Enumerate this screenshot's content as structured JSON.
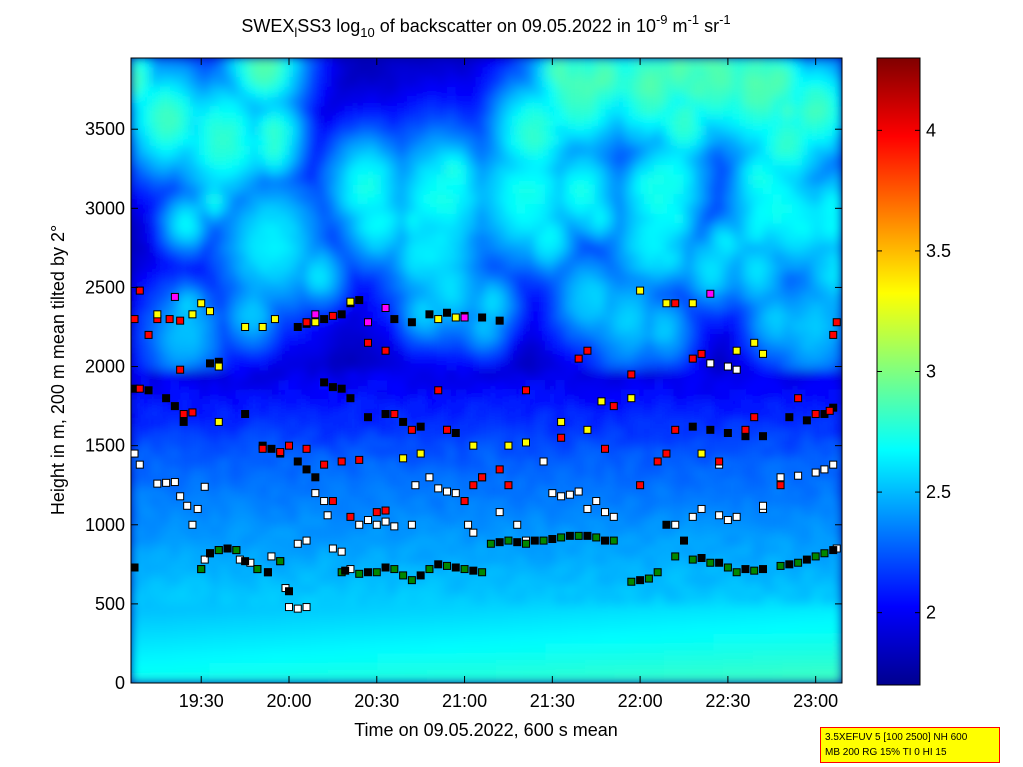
{
  "chart_data": {
    "type": "heatmap",
    "title": {
      "prefix": "SWEX",
      "sub1": "l",
      "mid1": "SS3 log",
      "sub2": "10",
      "mid2": " of backscatter on 09.05.2022 in 10",
      "sup1": "-9",
      "mid3": " m",
      "sup2": "-1",
      "mid4": " sr",
      "sup3": "-1"
    },
    "xlabel": "Time on 09.05.2022, 600 s mean",
    "ylabel": "Height in m, 200 m mean tilted by 2°",
    "x_range_hours": [
      19.1,
      23.15
    ],
    "y_range_m": [
      0,
      3950
    ],
    "x_ticks": [
      {
        "value": 19.5,
        "label": "19:30"
      },
      {
        "value": 20.0,
        "label": "20:00"
      },
      {
        "value": 20.5,
        "label": "20:30"
      },
      {
        "value": 21.0,
        "label": "21:00"
      },
      {
        "value": 21.5,
        "label": "21:30"
      },
      {
        "value": 22.0,
        "label": "22:00"
      },
      {
        "value": 22.5,
        "label": "22:30"
      },
      {
        "value": 23.0,
        "label": "23:00"
      }
    ],
    "y_ticks": [
      {
        "value": 0,
        "label": "0"
      },
      {
        "value": 500,
        "label": "500"
      },
      {
        "value": 1000,
        "label": "1000"
      },
      {
        "value": 1500,
        "label": "1500"
      },
      {
        "value": 2000,
        "label": "2000"
      },
      {
        "value": 2500,
        "label": "2500"
      },
      {
        "value": 3000,
        "label": "3000"
      },
      {
        "value": 3500,
        "label": "3500"
      }
    ],
    "colorbar": {
      "range": [
        1.7,
        4.3
      ],
      "ticks": [
        {
          "value": 2,
          "label": "2"
        },
        {
          "value": 2.5,
          "label": "2.5"
        },
        {
          "value": 3,
          "label": "3"
        },
        {
          "value": 3.5,
          "label": "3.5"
        },
        {
          "value": 4,
          "label": "4"
        }
      ],
      "colormap": "jet"
    },
    "marker_layers": [
      {
        "color": "#ffffff",
        "points": [
          [
            19.12,
            1450
          ],
          [
            19.15,
            1380
          ],
          [
            19.25,
            1260
          ],
          [
            19.3,
            1265
          ],
          [
            19.35,
            1270
          ],
          [
            19.38,
            1180
          ],
          [
            19.42,
            1120
          ],
          [
            19.45,
            1000
          ],
          [
            19.48,
            1100
          ],
          [
            19.52,
            1240
          ],
          [
            19.5,
            720
          ],
          [
            19.52,
            780
          ],
          [
            19.55,
            820
          ],
          [
            19.6,
            840
          ],
          [
            19.65,
            850
          ],
          [
            19.7,
            840
          ],
          [
            19.72,
            780
          ],
          [
            19.78,
            760
          ],
          [
            19.82,
            720
          ],
          [
            19.88,
            700
          ],
          [
            19.9,
            800
          ],
          [
            19.95,
            770
          ],
          [
            19.98,
            600
          ],
          [
            20.0,
            480
          ],
          [
            20.05,
            470
          ],
          [
            20.1,
            480
          ],
          [
            20.05,
            880
          ],
          [
            20.1,
            900
          ],
          [
            20.15,
            1200
          ],
          [
            20.2,
            1150
          ],
          [
            20.22,
            1060
          ],
          [
            20.25,
            850
          ],
          [
            20.3,
            830
          ],
          [
            20.35,
            720
          ],
          [
            20.4,
            1000
          ],
          [
            20.45,
            1030
          ],
          [
            20.5,
            1000
          ],
          [
            20.55,
            1020
          ],
          [
            20.6,
            990
          ],
          [
            20.7,
            1000
          ],
          [
            20.72,
            1250
          ],
          [
            20.8,
            1300
          ],
          [
            20.85,
            1230
          ],
          [
            20.9,
            1210
          ],
          [
            20.95,
            1200
          ],
          [
            21.0,
            1150
          ],
          [
            21.02,
            1000
          ],
          [
            21.05,
            950
          ],
          [
            21.1,
            1300
          ],
          [
            21.2,
            1080
          ],
          [
            21.3,
            1000
          ],
          [
            21.35,
            900
          ],
          [
            21.45,
            1400
          ],
          [
            21.5,
            1200
          ],
          [
            21.55,
            1180
          ],
          [
            21.6,
            1190
          ],
          [
            21.65,
            1210
          ],
          [
            21.7,
            1100
          ],
          [
            21.75,
            1150
          ],
          [
            21.8,
            1080
          ],
          [
            21.85,
            1050
          ],
          [
            22.2,
            1000
          ],
          [
            22.3,
            1050
          ],
          [
            22.35,
            1100
          ],
          [
            22.45,
            1060
          ],
          [
            22.5,
            1030
          ],
          [
            22.55,
            1050
          ],
          [
            22.7,
            1100
          ],
          [
            22.8,
            1300
          ],
          [
            22.9,
            1310
          ],
          [
            23.0,
            1330
          ],
          [
            23.05,
            1350
          ],
          [
            23.1,
            1380
          ],
          [
            22.4,
            2020
          ],
          [
            22.5,
            2000
          ],
          [
            22.55,
            1980
          ],
          [
            22.45,
            1380
          ],
          [
            22.7,
            1120
          ],
          [
            23.12,
            850
          ]
        ]
      },
      {
        "color": "#008800",
        "points": [
          [
            19.5,
            720
          ],
          [
            19.6,
            840
          ],
          [
            19.7,
            840
          ],
          [
            19.82,
            720
          ],
          [
            19.95,
            770
          ],
          [
            20.3,
            700
          ],
          [
            20.4,
            690
          ],
          [
            20.5,
            700
          ],
          [
            20.6,
            720
          ],
          [
            20.65,
            680
          ],
          [
            20.7,
            650
          ],
          [
            20.8,
            720
          ],
          [
            20.9,
            740
          ],
          [
            21.0,
            720
          ],
          [
            21.1,
            700
          ],
          [
            21.15,
            880
          ],
          [
            21.25,
            900
          ],
          [
            21.35,
            880
          ],
          [
            21.45,
            900
          ],
          [
            21.55,
            920
          ],
          [
            21.65,
            930
          ],
          [
            21.75,
            920
          ],
          [
            21.85,
            900
          ],
          [
            21.95,
            640
          ],
          [
            22.05,
            660
          ],
          [
            22.1,
            700
          ],
          [
            22.2,
            800
          ],
          [
            22.3,
            780
          ],
          [
            22.4,
            760
          ],
          [
            22.5,
            730
          ],
          [
            22.55,
            700
          ],
          [
            22.65,
            710
          ],
          [
            22.8,
            740
          ],
          [
            22.9,
            760
          ],
          [
            23.0,
            800
          ],
          [
            23.05,
            820
          ]
        ]
      },
      {
        "color": "#000000",
        "points": [
          [
            19.12,
            730
          ],
          [
            19.55,
            820
          ],
          [
            19.65,
            850
          ],
          [
            19.75,
            770
          ],
          [
            19.88,
            700
          ],
          [
            20.0,
            580
          ],
          [
            20.32,
            710
          ],
          [
            20.45,
            700
          ],
          [
            20.55,
            730
          ],
          [
            20.75,
            680
          ],
          [
            20.85,
            750
          ],
          [
            20.95,
            730
          ],
          [
            21.05,
            710
          ],
          [
            21.2,
            890
          ],
          [
            21.3,
            890
          ],
          [
            21.4,
            900
          ],
          [
            21.5,
            910
          ],
          [
            21.6,
            930
          ],
          [
            21.7,
            930
          ],
          [
            21.8,
            900
          ],
          [
            22.0,
            650
          ],
          [
            22.15,
            1000
          ],
          [
            22.25,
            900
          ],
          [
            22.35,
            790
          ],
          [
            22.45,
            760
          ],
          [
            22.6,
            720
          ],
          [
            22.7,
            720
          ],
          [
            22.85,
            750
          ],
          [
            22.95,
            780
          ],
          [
            23.1,
            840
          ],
          [
            19.12,
            1860
          ],
          [
            19.2,
            1850
          ],
          [
            19.3,
            1800
          ],
          [
            19.35,
            1750
          ],
          [
            19.4,
            1650
          ],
          [
            19.55,
            2020
          ],
          [
            19.6,
            2030
          ],
          [
            19.75,
            1700
          ],
          [
            19.85,
            1500
          ],
          [
            19.9,
            1480
          ],
          [
            19.95,
            1450
          ],
          [
            20.05,
            1400
          ],
          [
            20.1,
            1350
          ],
          [
            20.15,
            1300
          ],
          [
            20.2,
            1900
          ],
          [
            20.25,
            1870
          ],
          [
            20.3,
            1860
          ],
          [
            20.35,
            1800
          ],
          [
            20.45,
            1680
          ],
          [
            20.55,
            1700
          ],
          [
            20.65,
            1650
          ],
          [
            20.75,
            1620
          ],
          [
            20.9,
            1600
          ],
          [
            20.95,
            1580
          ],
          [
            20.3,
            2330
          ],
          [
            20.35,
            2400
          ],
          [
            20.4,
            2420
          ],
          [
            20.05,
            2250
          ],
          [
            20.1,
            2270
          ],
          [
            20.2,
            2300
          ],
          [
            20.6,
            2300
          ],
          [
            20.7,
            2280
          ],
          [
            20.8,
            2330
          ],
          [
            20.9,
            2340
          ],
          [
            21.0,
            2320
          ],
          [
            21.1,
            2310
          ],
          [
            21.2,
            2290
          ],
          [
            22.3,
            1620
          ],
          [
            22.4,
            1600
          ],
          [
            22.5,
            1580
          ],
          [
            22.6,
            1560
          ],
          [
            22.7,
            1560
          ],
          [
            22.85,
            1680
          ],
          [
            22.95,
            1660
          ],
          [
            23.05,
            1700
          ],
          [
            23.1,
            1740
          ]
        ]
      },
      {
        "color": "#ff0000",
        "points": [
          [
            19.12,
            2300
          ],
          [
            19.15,
            2480
          ],
          [
            19.2,
            2200
          ],
          [
            19.25,
            2300
          ],
          [
            19.32,
            2300
          ],
          [
            19.38,
            2290
          ],
          [
            19.4,
            1700
          ],
          [
            19.45,
            1710
          ],
          [
            19.38,
            1980
          ],
          [
            19.15,
            1860
          ],
          [
            19.85,
            1480
          ],
          [
            19.95,
            1460
          ],
          [
            20.0,
            1500
          ],
          [
            20.1,
            1480
          ],
          [
            20.2,
            1380
          ],
          [
            20.3,
            1400
          ],
          [
            20.4,
            1410
          ],
          [
            20.25,
            1150
          ],
          [
            20.35,
            1050
          ],
          [
            20.5,
            1080
          ],
          [
            20.55,
            1090
          ],
          [
            20.1,
            2280
          ],
          [
            20.25,
            2320
          ],
          [
            20.45,
            2150
          ],
          [
            20.55,
            2100
          ],
          [
            20.6,
            1700
          ],
          [
            20.7,
            1600
          ],
          [
            20.85,
            1850
          ],
          [
            20.9,
            1600
          ],
          [
            21.0,
            1150
          ],
          [
            21.05,
            1250
          ],
          [
            21.1,
            1300
          ],
          [
            21.2,
            1350
          ],
          [
            21.25,
            1250
          ],
          [
            21.35,
            1850
          ],
          [
            21.55,
            1550
          ],
          [
            21.65,
            2050
          ],
          [
            21.7,
            2100
          ],
          [
            21.8,
            1480
          ],
          [
            21.85,
            1750
          ],
          [
            21.95,
            1950
          ],
          [
            22.0,
            1250
          ],
          [
            22.1,
            1400
          ],
          [
            22.15,
            1450
          ],
          [
            22.2,
            1600
          ],
          [
            22.3,
            2050
          ],
          [
            22.35,
            2080
          ],
          [
            22.45,
            1400
          ],
          [
            22.6,
            1600
          ],
          [
            22.65,
            1680
          ],
          [
            22.8,
            1250
          ],
          [
            22.9,
            1800
          ],
          [
            23.0,
            1700
          ],
          [
            23.08,
            1720
          ],
          [
            23.12,
            2280
          ],
          [
            23.1,
            2200
          ],
          [
            22.2,
            2400
          ]
        ]
      },
      {
        "color": "#ffff00",
        "points": [
          [
            19.25,
            2330
          ],
          [
            19.45,
            2330
          ],
          [
            19.5,
            2400
          ],
          [
            19.55,
            2350
          ],
          [
            19.6,
            2000
          ],
          [
            19.75,
            2250
          ],
          [
            19.85,
            2250
          ],
          [
            19.92,
            2300
          ],
          [
            19.6,
            1650
          ],
          [
            20.15,
            2280
          ],
          [
            20.35,
            2410
          ],
          [
            20.65,
            1420
          ],
          [
            20.75,
            1450
          ],
          [
            20.85,
            2300
          ],
          [
            20.95,
            2310
          ],
          [
            21.05,
            1500
          ],
          [
            21.25,
            1500
          ],
          [
            21.35,
            1520
          ],
          [
            21.55,
            1650
          ],
          [
            21.7,
            1600
          ],
          [
            21.78,
            1780
          ],
          [
            21.95,
            1800
          ],
          [
            22.0,
            2480
          ],
          [
            22.15,
            2400
          ],
          [
            22.3,
            2400
          ],
          [
            22.35,
            1450
          ],
          [
            22.55,
            2100
          ],
          [
            22.65,
            2150
          ],
          [
            22.7,
            2080
          ]
        ]
      },
      {
        "color": "#ff00ff",
        "points": [
          [
            19.35,
            2440
          ],
          [
            20.45,
            2280
          ],
          [
            20.55,
            2370
          ],
          [
            21.0,
            2310
          ],
          [
            22.4,
            2460
          ],
          [
            20.15,
            2330
          ]
        ]
      }
    ]
  },
  "info_box": {
    "line1": "3.5XEFUV 5 [100 2500] NH 600",
    "line2": "MB 200 RG 15% TI 0 HI 15"
  }
}
